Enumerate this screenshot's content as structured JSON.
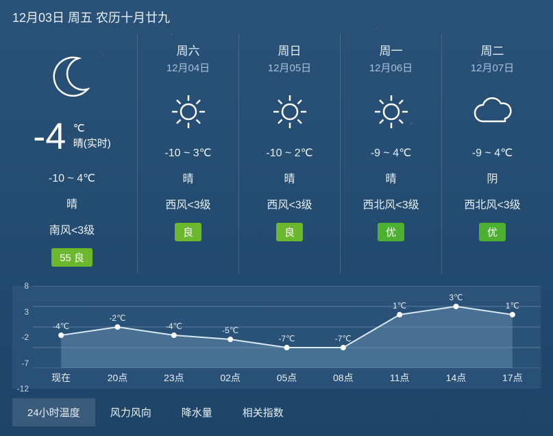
{
  "header": {
    "date_text": "12月03日 周五 农历十月廿九"
  },
  "current": {
    "temp": "-4",
    "unit": "℃",
    "condition": "晴(实时)",
    "range": "-10 ~ 4℃",
    "cond": "晴",
    "wind": "南风<3级",
    "aqi_value": "55",
    "aqi_label": "良",
    "aqi_color": "#6bb82e"
  },
  "forecast": [
    {
      "day": "周六",
      "date": "12月04日",
      "icon": "sun",
      "range": "-10 ~ 3℃",
      "cond": "晴",
      "wind": "西风<3级",
      "aqi_label": "良",
      "aqi_color": "#6bb82e"
    },
    {
      "day": "周日",
      "date": "12月05日",
      "icon": "sun",
      "range": "-10 ~ 2℃",
      "cond": "晴",
      "wind": "西风<3级",
      "aqi_label": "良",
      "aqi_color": "#6bb82e"
    },
    {
      "day": "周一",
      "date": "12月06日",
      "icon": "sun",
      "range": "-9 ~ 4℃",
      "cond": "晴",
      "wind": "西北风<3级",
      "aqi_label": "优",
      "aqi_color": "#4eb030"
    },
    {
      "day": "周二",
      "date": "12月07日",
      "icon": "cloud",
      "range": "-9 ~ 4℃",
      "cond": "阴",
      "wind": "西北风<3级",
      "aqi_label": "优",
      "aqi_color": "#4eb030"
    }
  ],
  "chart": {
    "type": "line",
    "y_ticks": [
      8,
      3,
      -2,
      -7,
      -12
    ],
    "ylim": [
      -12,
      8
    ],
    "x_labels": [
      "现在",
      "20点",
      "23点",
      "02点",
      "05点",
      "08点",
      "11点",
      "14点",
      "17点"
    ],
    "values": [
      -4,
      -2,
      -4,
      -5,
      -7,
      -7,
      1,
      3,
      1
    ],
    "value_labels": [
      "-4℃",
      "-2℃",
      "-4℃",
      "-5℃",
      "-7℃",
      "-7℃",
      "1℃",
      "3℃",
      "1℃"
    ],
    "line_color": "#d8e8f0",
    "fill_color": "rgba(120,160,190,.4)",
    "point_color": "#ffffff",
    "grid_color": "rgba(255,255,255,.25)"
  },
  "tabs": {
    "items": [
      "24小时温度",
      "风力风向",
      "降水量",
      "相关指数"
    ],
    "active_index": 0
  }
}
